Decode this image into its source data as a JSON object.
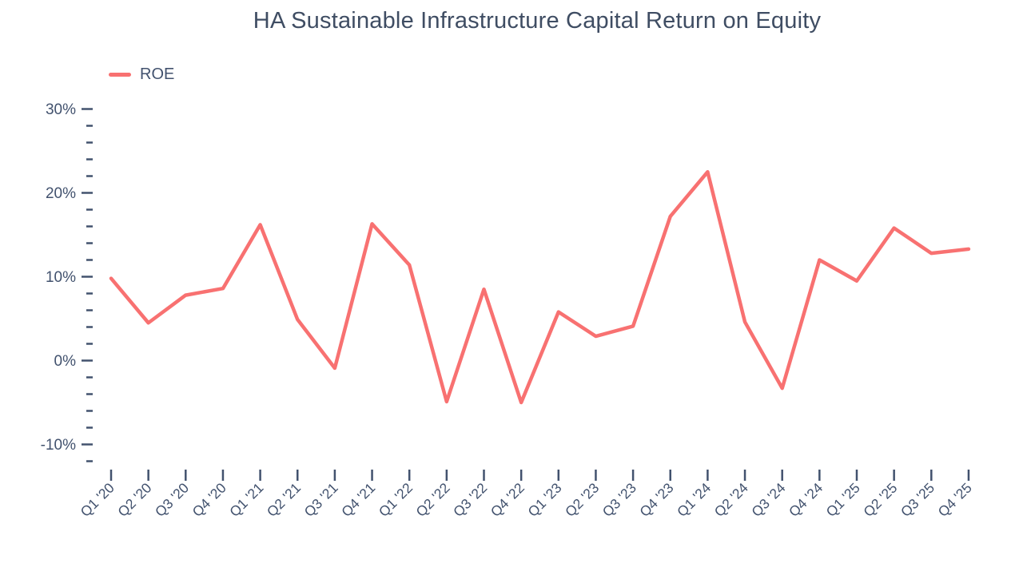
{
  "page": {
    "title": "HA Sustainable Infrastructure Capital Return on Equity"
  },
  "legend": {
    "items": [
      {
        "label": "ROE",
        "color": "#f87171"
      }
    ]
  },
  "chart_data": {
    "type": "line",
    "title": "HA Sustainable Infrastructure Capital Return on Equity",
    "categories": [
      "Q1 '20",
      "Q2 '20",
      "Q3 '20",
      "Q4 '20",
      "Q1 '21",
      "Q2 '21",
      "Q3 '21",
      "Q4 '21",
      "Q1 '22",
      "Q2 '22",
      "Q3 '22",
      "Q4 '22",
      "Q1 '23",
      "Q2 '23",
      "Q3 '23",
      "Q4 '23",
      "Q1 '24",
      "Q2 '24",
      "Q3 '24",
      "Q4 '24",
      "Q1 '25",
      "Q2 '25",
      "Q3 '25",
      "Q4 '25"
    ],
    "series": [
      {
        "name": "ROE",
        "color": "#f87171",
        "values": [
          9.8,
          4.5,
          7.8,
          8.6,
          16.2,
          4.9,
          -0.9,
          16.3,
          11.4,
          -4.9,
          8.5,
          -5.0,
          5.8,
          2.9,
          4.1,
          17.2,
          22.5,
          4.6,
          -3.3,
          12.0,
          9.5,
          15.8,
          12.8,
          13.3
        ]
      }
    ],
    "xlabel": "",
    "ylabel": "",
    "ylim": [
      -12,
      30
    ],
    "y_major_ticks": [
      {
        "value": 30,
        "label": "30%"
      },
      {
        "value": 20,
        "label": "20%"
      },
      {
        "value": 10,
        "label": "10%"
      },
      {
        "value": 0,
        "label": "0%"
      },
      {
        "value": -10,
        "label": "-10%"
      }
    ],
    "y_minor_step": 2,
    "grid": false,
    "legend_position": "top-left",
    "background_color": "#ffffff",
    "axis_text_color": "#42526e"
  }
}
